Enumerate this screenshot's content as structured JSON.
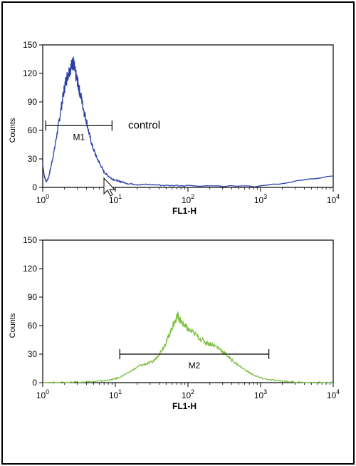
{
  "chart_data": [
    {
      "type": "line",
      "title": "",
      "xlabel": "FL1-H",
      "ylabel": "Counts",
      "xscale": "log",
      "xlim": [
        1,
        10000
      ],
      "ylim": [
        0,
        150
      ],
      "yticks": [
        0,
        30,
        60,
        90,
        120,
        150
      ],
      "xticks": [
        {
          "value": 1,
          "base": "10",
          "exp": "0"
        },
        {
          "value": 10,
          "base": "10",
          "exp": "1"
        },
        {
          "value": 100,
          "base": "10",
          "exp": "2"
        },
        {
          "value": 1000,
          "base": "10",
          "exp": "3"
        },
        {
          "value": 10000,
          "base": "10",
          "exp": "4"
        }
      ],
      "color": "#2a3fa8",
      "annotation": "control",
      "gate": {
        "label": "M1",
        "from": 1.1,
        "to": 9.0,
        "y": 65
      },
      "series": [
        {
          "name": "",
          "x": [
            1.0,
            1.05,
            1.12,
            1.2,
            1.3,
            1.45,
            1.6,
            1.75,
            1.9,
            2.05,
            2.2,
            2.35,
            2.5,
            2.62,
            2.72,
            2.85,
            3.0,
            3.2,
            3.45,
            3.7,
            4.0,
            4.4,
            4.9,
            5.5,
            6.2,
            7.0,
            8.0,
            9.0,
            10.5,
            12,
            15,
            20,
            30,
            50,
            100,
            1000,
            10000
          ],
          "y": [
            25,
            12,
            6,
            10,
            22,
            40,
            60,
            78,
            95,
            110,
            118,
            124,
            128,
            133,
            126,
            118,
            112,
            102,
            92,
            80,
            70,
            55,
            42,
            32,
            24,
            16,
            12,
            9,
            7,
            6,
            4,
            3,
            3,
            2,
            2,
            1,
            12
          ]
        }
      ]
    },
    {
      "type": "line",
      "title": "",
      "xlabel": "FL1-H",
      "ylabel": "Counts",
      "xscale": "log",
      "xlim": [
        1,
        10000
      ],
      "ylim": [
        0,
        150
      ],
      "yticks": [
        0,
        30,
        60,
        90,
        120,
        150
      ],
      "xticks": [
        {
          "value": 1,
          "base": "10",
          "exp": "0"
        },
        {
          "value": 10,
          "base": "10",
          "exp": "1"
        },
        {
          "value": 100,
          "base": "10",
          "exp": "2"
        },
        {
          "value": 1000,
          "base": "10",
          "exp": "3"
        },
        {
          "value": 10000,
          "base": "10",
          "exp": "4"
        }
      ],
      "color": "#7cc242",
      "gate": {
        "label": "M2",
        "from": 11.5,
        "to": 1300,
        "y": 30
      },
      "series": [
        {
          "name": "",
          "x": [
            1,
            2,
            3,
            5,
            7,
            9,
            11,
            14,
            18,
            22,
            27,
            33,
            40,
            48,
            55,
            62,
            68,
            72,
            75,
            80,
            90,
            100,
            120,
            150,
            180,
            220,
            270,
            330,
            400,
            500,
            650,
            800,
            1000,
            1300,
            1800,
            2500,
            4000,
            6000,
            10000
          ],
          "y": [
            0,
            0,
            1,
            1,
            2,
            3,
            5,
            9,
            14,
            18,
            20,
            22,
            30,
            40,
            50,
            60,
            66,
            72,
            68,
            64,
            60,
            56,
            52,
            46,
            42,
            40,
            36,
            30,
            24,
            18,
            12,
            8,
            5,
            3,
            2,
            1,
            0,
            0,
            0
          ]
        }
      ]
    }
  ]
}
